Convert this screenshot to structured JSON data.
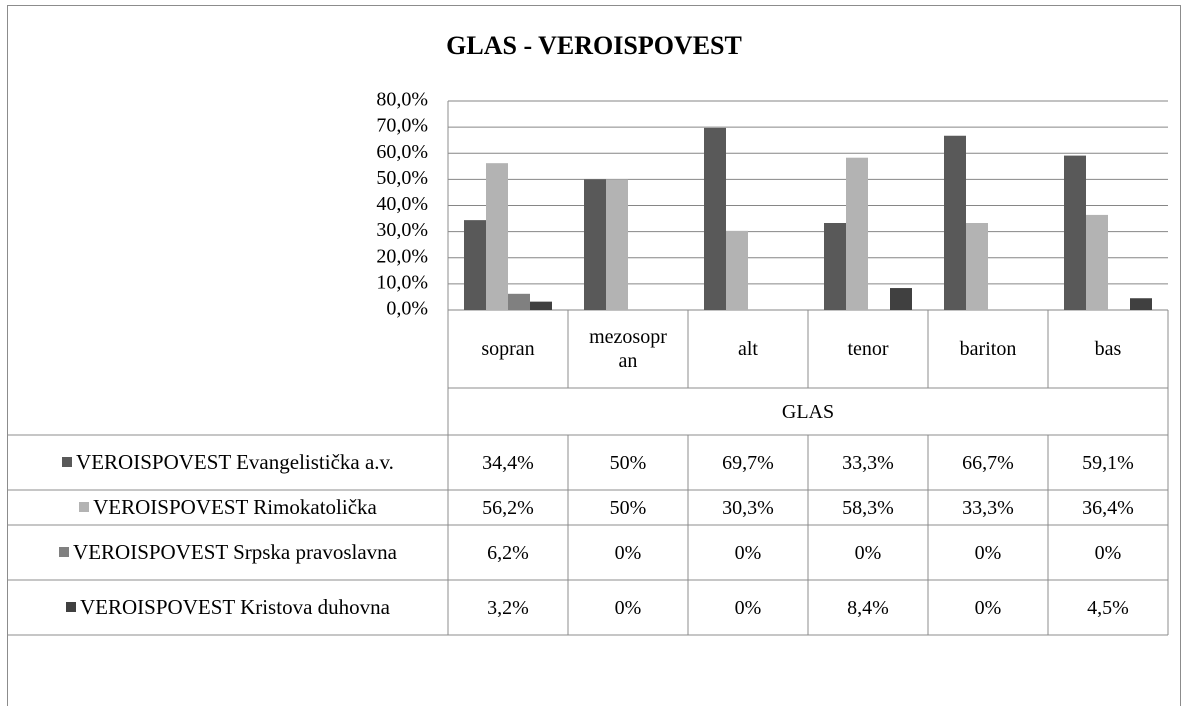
{
  "chart_data": {
    "type": "bar",
    "title": "GLAS - VEROISPOVEST",
    "x_label": "GLAS",
    "categories": [
      "sopran",
      "mezosopran",
      "alt",
      "tenor",
      "bariton",
      "bas"
    ],
    "series": [
      {
        "name": "VEROISPOVEST Evangelistička a.v.",
        "color": "#595959",
        "values": [
          34.4,
          50,
          69.7,
          33.3,
          66.7,
          59.1
        ],
        "value_labels": [
          "34,4%",
          "50%",
          "69,7%",
          "33,3%",
          "66,7%",
          "59,1%"
        ]
      },
      {
        "name": "VEROISPOVEST Rimokatolička",
        "color": "#b3b3b3",
        "values": [
          56.2,
          50,
          30.3,
          58.3,
          33.3,
          36.4
        ],
        "value_labels": [
          "56,2%",
          "50%",
          "30,3%",
          "58,3%",
          "33,3%",
          "36,4%"
        ]
      },
      {
        "name": "VEROISPOVEST Srpska pravoslavna",
        "color": "#808080",
        "values": [
          6.2,
          0,
          0,
          0,
          0,
          0
        ],
        "value_labels": [
          "6,2%",
          "0%",
          "0%",
          "0%",
          "0%",
          "0%"
        ]
      },
      {
        "name": "VEROISPOVEST Kristova duhovna",
        "color": "#404040",
        "values": [
          3.2,
          0,
          0,
          8.4,
          0,
          4.5
        ],
        "value_labels": [
          "3,2%",
          "0%",
          "0%",
          "8,4%",
          "0%",
          "4,5%"
        ]
      }
    ],
    "ylim": [
      0,
      80
    ],
    "yticks": [
      {
        "value": 0,
        "label": "0,0%"
      },
      {
        "value": 10,
        "label": "10,0%"
      },
      {
        "value": 20,
        "label": "20,0%"
      },
      {
        "value": 30,
        "label": "30,0%"
      },
      {
        "value": 40,
        "label": "40,0%"
      },
      {
        "value": 50,
        "label": "50,0%"
      },
      {
        "value": 60,
        "label": "60,0%"
      },
      {
        "value": 70,
        "label": "70,0%"
      },
      {
        "value": 80,
        "label": "80,0%"
      }
    ],
    "grid": true
  }
}
